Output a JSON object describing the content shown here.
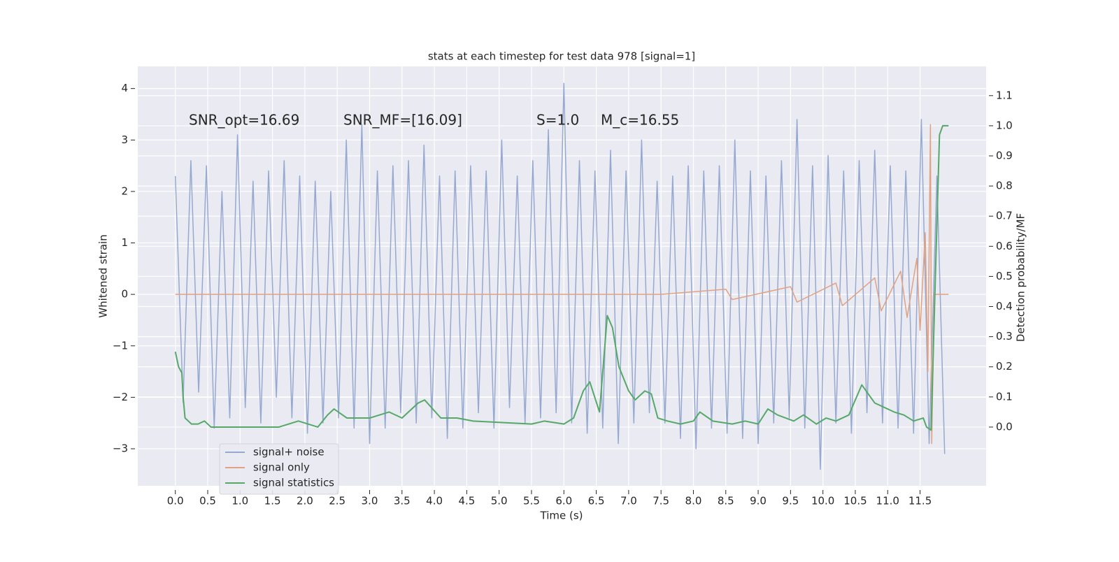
{
  "chart_data": {
    "type": "line",
    "title": "stats at each timestep for test data 978 [signal=1]",
    "xlabel": "Time (s)",
    "ylabel": "Whitened strain",
    "y2label": "Detection probability/MF",
    "annotations": [
      "SNR_opt=16.69",
      "SNR_MF=[16.09]",
      "S=1.0",
      "M_c=16.55"
    ],
    "grid": true,
    "legend": "lower left",
    "xlim": [
      -0.58,
      12.52
    ],
    "ylim": [
      -3.72,
      4.43
    ],
    "y2lim": [
      -0.195,
      1.197
    ],
    "xticks": [
      {
        "value": 0,
        "label": "0.0"
      },
      0.5,
      {
        "value": 1,
        "label": "1.0"
      },
      1.5,
      {
        "value": 2,
        "label": "2.0"
      },
      2.5,
      {
        "value": 3,
        "label": "3.0"
      },
      3.5,
      {
        "value": 4,
        "label": "4.0"
      },
      4.5,
      {
        "value": 5,
        "label": "5.0"
      },
      5.5,
      {
        "value": 6,
        "label": "6.0"
      },
      6.5,
      {
        "value": 7,
        "label": "7.0"
      },
      7.5,
      {
        "value": 8,
        "label": "8.0"
      },
      8.5,
      {
        "value": 9,
        "label": "9.0"
      },
      9.5,
      {
        "value": 10,
        "label": "10.0"
      },
      10.5,
      {
        "value": 11,
        "label": "11.0"
      },
      11.5
    ],
    "yticks": [
      4,
      3,
      2,
      1,
      0,
      {
        "value": -1,
        "label": "−1"
      },
      {
        "value": -2,
        "label": "−2"
      },
      {
        "value": -3,
        "label": "−3"
      }
    ],
    "y2ticks": [
      1.1,
      {
        "value": 1,
        "label": "1.0"
      },
      0.9,
      0.8,
      0.7,
      0.6,
      0.5,
      0.4,
      0.3,
      0.2,
      0.1,
      {
        "value": 0,
        "label": "0.0"
      }
    ],
    "series": [
      {
        "name": "signal+ noise",
        "color": "#96a9d0",
        "x": [
          0,
          0.12,
          0.24,
          0.36,
          0.48,
          0.6,
          0.72,
          0.84,
          0.96,
          1.08,
          1.2,
          1.32,
          1.44,
          1.56,
          1.68,
          1.8,
          1.92,
          2.04,
          2.16,
          2.28,
          2.4,
          2.52,
          2.64,
          2.76,
          2.88,
          3,
          3.12,
          3.24,
          3.36,
          3.48,
          3.6,
          3.72,
          3.84,
          3.96,
          4.08,
          4.2,
          4.32,
          4.44,
          4.56,
          4.68,
          4.8,
          4.92,
          5.04,
          5.16,
          5.28,
          5.4,
          5.52,
          5.64,
          5.76,
          5.88,
          6,
          6.12,
          6.24,
          6.36,
          6.48,
          6.6,
          6.72,
          6.84,
          6.96,
          7.08,
          7.2,
          7.32,
          7.44,
          7.56,
          7.68,
          7.8,
          7.92,
          8.04,
          8.16,
          8.28,
          8.4,
          8.52,
          8.64,
          8.76,
          8.88,
          9,
          9.12,
          9.24,
          9.36,
          9.48,
          9.6,
          9.72,
          9.84,
          9.96,
          10.08,
          10.2,
          10.32,
          10.44,
          10.56,
          10.68,
          10.8,
          10.92,
          11.04,
          11.16,
          11.28,
          11.4,
          11.52,
          11.64,
          11.76,
          11.88
        ],
        "values": [
          2.3,
          -2.1,
          2.6,
          -1.9,
          2.5,
          -2.6,
          2.0,
          -2.4,
          3.1,
          -2.2,
          2.2,
          -2.5,
          2.4,
          -2.0,
          2.6,
          -2.4,
          2.3,
          -2.7,
          2.2,
          -2.5,
          2.0,
          -2.4,
          3.0,
          -2.6,
          3.3,
          -2.9,
          2.4,
          -2.6,
          2.5,
          -2.3,
          2.6,
          -2.5,
          2.9,
          -2.4,
          2.3,
          -2.8,
          2.4,
          -2.6,
          2.5,
          -2.3,
          2.4,
          -2.6,
          3.0,
          -2.2,
          2.3,
          -2.5,
          2.6,
          -2.4,
          3.2,
          -2.3,
          4.1,
          -2.5,
          2.6,
          -2.7,
          2.4,
          -2.6,
          2.8,
          -2.9,
          2.4,
          -2.5,
          3.0,
          -2.3,
          2.2,
          -2.5,
          2.3,
          -2.8,
          2.5,
          -3.0,
          2.4,
          -2.6,
          2.5,
          -2.7,
          3.0,
          -2.8,
          2.4,
          -2.9,
          2.3,
          -2.5,
          2.6,
          -2.4,
          3.4,
          -2.6,
          2.5,
          -3.4,
          2.7,
          -2.5,
          2.4,
          -2.7,
          2.6,
          -2.3,
          2.8,
          -2.5,
          2.5,
          -2.6,
          2.4,
          -2.7,
          3.4,
          -2.9,
          2.3,
          -3.1
        ]
      },
      {
        "name": "signal only",
        "color": "#e0a283",
        "x": [
          0,
          7.5,
          8.5,
          8.6,
          9.5,
          9.6,
          10.2,
          10.3,
          10.8,
          10.9,
          11.2,
          11.3,
          11.45,
          11.5,
          11.58,
          11.62,
          11.66,
          11.68,
          11.72,
          11.94
        ],
        "values": [
          0,
          0,
          0.1,
          -0.1,
          0.15,
          -0.15,
          0.22,
          -0.22,
          0.32,
          -0.32,
          0.45,
          -0.45,
          0.7,
          -0.7,
          1.2,
          -1.5,
          3.3,
          -2.9,
          0,
          0
        ]
      },
      {
        "name": "signal statistics",
        "color": "#55a868",
        "axis": "y2",
        "x": [
          0,
          0.05,
          0.1,
          0.12,
          0.15,
          0.2,
          0.25,
          0.35,
          0.45,
          0.55,
          0.8,
          1.2,
          1.6,
          1.9,
          2.2,
          2.35,
          2.45,
          2.65,
          3,
          3.3,
          3.5,
          3.75,
          3.85,
          4.1,
          4.35,
          4.6,
          5.5,
          5.7,
          6,
          6.15,
          6.3,
          6.4,
          6.55,
          6.67,
          6.75,
          6.85,
          7,
          7.1,
          7.25,
          7.35,
          7.45,
          7.6,
          7.8,
          8,
          8.1,
          8.3,
          8.6,
          8.8,
          9,
          9.15,
          9.3,
          9.55,
          9.7,
          9.9,
          10.05,
          10.2,
          10.4,
          10.6,
          10.7,
          10.8,
          11.1,
          11.25,
          11.4,
          11.55,
          11.6,
          11.67,
          11.75,
          11.8,
          11.85,
          11.94
        ],
        "values": [
          0.25,
          0.2,
          0.18,
          0.1,
          0.03,
          0.02,
          0.01,
          0.01,
          0.02,
          0.0,
          0.0,
          0.0,
          0.0,
          0.02,
          0.0,
          0.04,
          0.06,
          0.03,
          0.03,
          0.05,
          0.03,
          0.08,
          0.09,
          0.03,
          0.03,
          0.02,
          0.01,
          0.02,
          0.01,
          0.03,
          0.12,
          0.15,
          0.05,
          0.37,
          0.33,
          0.2,
          0.12,
          0.09,
          0.12,
          0.11,
          0.03,
          0.02,
          0.01,
          0.02,
          0.05,
          0.02,
          0.01,
          0.02,
          0.01,
          0.06,
          0.04,
          0.02,
          0.04,
          0.01,
          0.03,
          0.02,
          0.04,
          0.14,
          0.11,
          0.08,
          0.05,
          0.04,
          0.02,
          0.03,
          0.0,
          -0.01,
          0.6,
          0.97,
          1.0,
          1.0
        ]
      }
    ]
  }
}
